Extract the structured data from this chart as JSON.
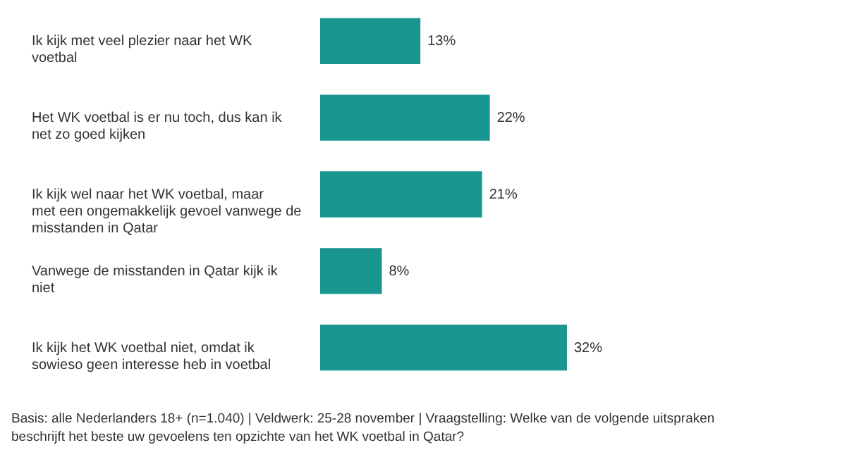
{
  "chart_data": {
    "type": "bar",
    "orientation": "horizontal",
    "categories": [
      "Ik kijk met veel plezier naar het WK voetbal",
      "Het WK voetbal is er nu toch, dus kan ik net zo goed kijken",
      "Ik kijk wel naar het WK voetbal, maar met een ongemakkelijk gevoel vanwege de misstanden in Qatar",
      "Vanwege de misstanden in Qatar kijk ik niet",
      "Ik kijk het WK voetbal niet, omdat ik sowieso geen interesse heb in voetbal"
    ],
    "values": [
      13,
      22,
      21,
      8,
      32
    ],
    "value_labels": [
      "13%",
      "22%",
      "21%",
      "8%",
      "32%"
    ],
    "color": "#1a9690",
    "annotations": [
      "Basis: alle Nederlanders 18+ (n=1.040) | Veldwerk: 25-28 november | Vraagstelling: Welke van de volgende uitspraken beschrijft het beste uw gevoelens ten opzichte van het WK voetbal in Qatar?"
    ]
  }
}
